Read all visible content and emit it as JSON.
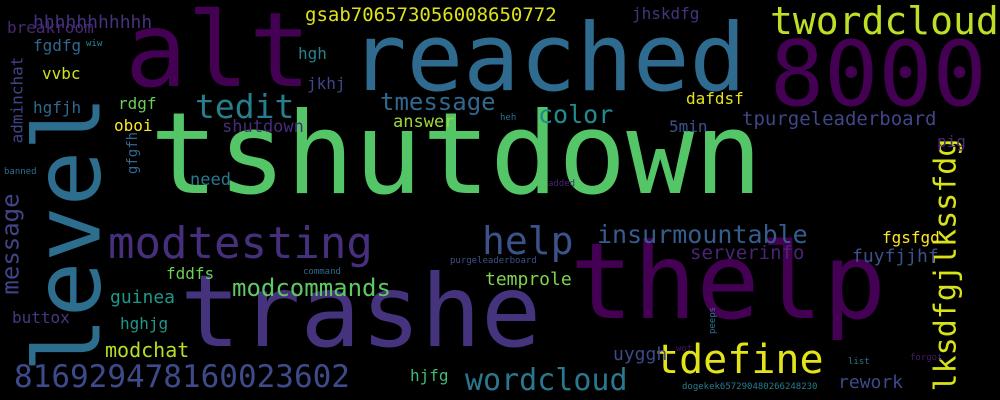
{
  "background_color": "#000000",
  "palette": [
    "#440154",
    "#3b528b",
    "#21918c",
    "#5ec962",
    "#fde725"
  ],
  "words": [
    {
      "text": "tshutdown",
      "color": "#55c667"
    },
    {
      "text": "thelp",
      "color": "#440154"
    },
    {
      "text": "trashe",
      "color": "#46337e"
    },
    {
      "text": "reached",
      "color": "#2f6b8e"
    },
    {
      "text": "alt",
      "color": "#440154"
    },
    {
      "text": "level",
      "color": "#2d6d8e"
    },
    {
      "text": "8000",
      "color": "#440154"
    },
    {
      "text": "modtesting",
      "color": "#472f7d"
    },
    {
      "text": "twordcloud",
      "color": "#bddf26"
    },
    {
      "text": "tdefine",
      "color": "#e2e418"
    },
    {
      "text": "lksdfgjlkssfdg",
      "color": "#d8e219"
    },
    {
      "text": "81692947816002360​2",
      "color": "#3e4a89"
    },
    {
      "text": "wordcloud",
      "color": "#2a788e"
    },
    {
      "text": "help",
      "color": "#3b528b"
    },
    {
      "text": "tedit",
      "color": "#277f8e"
    },
    {
      "text": "insurmountable",
      "color": "#365c8d"
    },
    {
      "text": "modcommands",
      "color": "#5ec962"
    },
    {
      "text": "tmessage",
      "color": "#31688e"
    },
    {
      "text": "message",
      "color": "#414487"
    },
    {
      "text": "color",
      "color": "#238a8d"
    },
    {
      "text": "modchat",
      "color": "#b8de29"
    },
    {
      "text": "gsab706573056008650772",
      "color": "#dde318"
    },
    {
      "text": "hhhhhhhhhhh",
      "color": "#46327e"
    },
    {
      "text": "tpurgeleaderboard",
      "color": "#3f4788"
    },
    {
      "text": "serverinfo",
      "color": "#482576"
    },
    {
      "text": "temprole",
      "color": "#7fd34e"
    },
    {
      "text": "guinea",
      "color": "#1f988b"
    },
    {
      "text": "rework",
      "color": "#3e4989"
    },
    {
      "text": "uyggh",
      "color": "#3e4989"
    },
    {
      "text": "shutdown",
      "color": "#472d7b"
    },
    {
      "text": "answer",
      "color": "#9dd93b"
    },
    {
      "text": "adminchat",
      "color": "#414487"
    },
    {
      "text": "fuyfjjhf",
      "color": "#3b528b"
    },
    {
      "text": "fgsfgd",
      "color": "#fde725"
    },
    {
      "text": "dafdsf",
      "color": "#e5e419"
    },
    {
      "text": "jhskdfg",
      "color": "#46337e"
    },
    {
      "text": "fgdfg",
      "color": "#31688e"
    },
    {
      "text": "breakroom",
      "color": "#482878"
    },
    {
      "text": "vvbc",
      "color": "#d0e11c"
    },
    {
      "text": "hgfjh",
      "color": "#31688e"
    },
    {
      "text": "rdgf",
      "color": "#6ccd5a"
    },
    {
      "text": "oboi",
      "color": "#fde725"
    },
    {
      "text": "hgh",
      "color": "#26828e"
    },
    {
      "text": "jkhj",
      "color": "#404688"
    },
    {
      "text": "gfgfh",
      "color": "#31688e"
    },
    {
      "text": "need",
      "color": "#2a788e"
    },
    {
      "text": "5min",
      "color": "#3b528b"
    },
    {
      "text": "pig",
      "color": "#482878"
    },
    {
      "text": "fddfs",
      "color": "#6ece58"
    },
    {
      "text": "hghjg",
      "color": "#1f968b"
    },
    {
      "text": "buttox",
      "color": "#443a83"
    },
    {
      "text": "hjfg",
      "color": "#3dbc74"
    },
    {
      "text": "wiw",
      "color": "#228c8d"
    },
    {
      "text": "heh",
      "color": "#2c728e"
    },
    {
      "text": "banned",
      "color": "#2d708e"
    },
    {
      "text": "added",
      "color": "#482475"
    },
    {
      "text": "command",
      "color": "#31688e"
    },
    {
      "text": "purgeleaderboard",
      "color": "#3b528b"
    },
    {
      "text": "peeps",
      "color": "#2c728e"
    },
    {
      "text": "wot",
      "color": "#481467"
    },
    {
      "text": "list",
      "color": "#2a788e"
    },
    {
      "text": "forgot",
      "color": "#481a6c"
    },
    {
      "text": "dogekek657290480266248230",
      "color": "#287c8e"
    }
  ]
}
